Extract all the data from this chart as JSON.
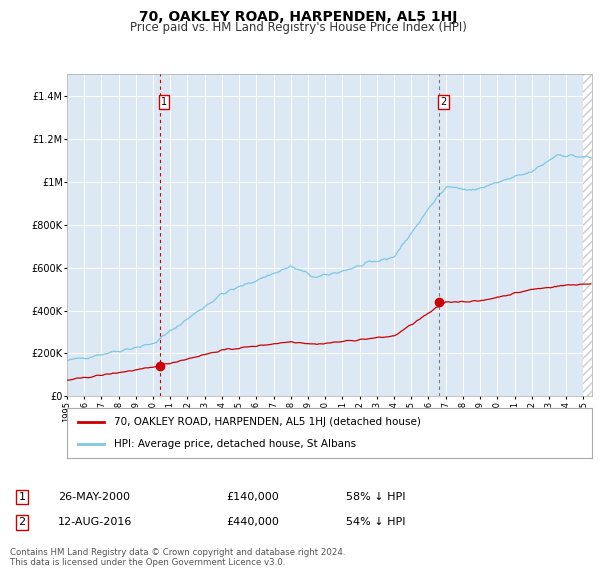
{
  "title": "70, OAKLEY ROAD, HARPENDEN, AL5 1HJ",
  "subtitle": "Price paid vs. HM Land Registry's House Price Index (HPI)",
  "title_fontsize": 10,
  "subtitle_fontsize": 8.5,
  "background_color": "#ffffff",
  "plot_bg_color": "#dce9f5",
  "grid_color": "#ffffff",
  "hpi_color": "#7ec8e3",
  "price_color": "#cc0000",
  "sale1_date": 2000.4,
  "sale1_price": 140000,
  "sale2_date": 2016.62,
  "sale2_price": 440000,
  "sale1_label": "26-MAY-2000",
  "sale1_amount": "£140,000",
  "sale1_pct": "58% ↓ HPI",
  "sale2_label": "12-AUG-2016",
  "sale2_amount": "£440,000",
  "sale2_pct": "54% ↓ HPI",
  "xmin": 1995.0,
  "xmax": 2025.5,
  "ymin": 0,
  "ymax": 1500000,
  "yticks": [
    0,
    200000,
    400000,
    600000,
    800000,
    1000000,
    1200000,
    1400000
  ],
  "ytick_labels": [
    "£0",
    "£200K",
    "£400K",
    "£600K",
    "£800K",
    "£1M",
    "£1.2M",
    "£1.4M"
  ],
  "legend_label1": "70, OAKLEY ROAD, HARPENDEN, AL5 1HJ (detached house)",
  "legend_label2": "HPI: Average price, detached house, St Albans",
  "footnote": "Contains HM Land Registry data © Crown copyright and database right 2024.\nThis data is licensed under the Open Government Licence v3.0."
}
